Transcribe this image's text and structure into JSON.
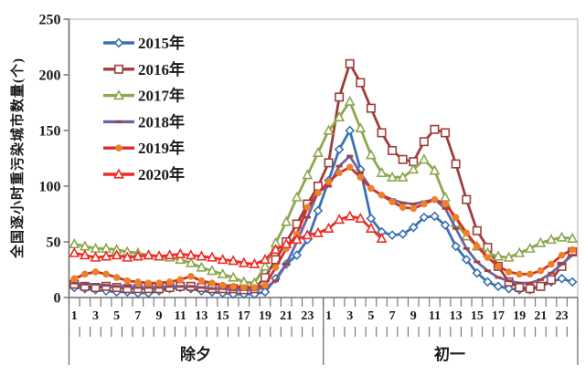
{
  "chart_data": {
    "type": "line",
    "title": "",
    "ylabel": "全国逐小时重污染城市数量(个)",
    "xlabel": "",
    "ylim": [
      0,
      250
    ],
    "y_ticks": [
      0,
      50,
      100,
      150,
      200,
      250
    ],
    "grid": false,
    "legend_position": "top-left",
    "x_groups": [
      {
        "label": "除夕",
        "hours": 24
      },
      {
        "label": "初一",
        "hours": 24
      }
    ],
    "x_tick_labels": [
      "1",
      "3",
      "5",
      "7",
      "9",
      "11",
      "13",
      "15",
      "17",
      "19",
      "21",
      "23"
    ],
    "axis_colors": {
      "axis": "#6e6e6e",
      "plot_border": "#bcbcbc",
      "text": "#1a1a1a"
    },
    "series": [
      {
        "name": "2015年",
        "color": "#3A72B0",
        "marker": "diamond",
        "values": [
          9,
          8,
          7,
          6,
          5,
          5,
          4,
          4,
          6,
          8,
          9,
          8,
          6,
          5,
          4,
          3,
          3,
          3,
          5,
          17,
          30,
          38,
          52,
          78,
          105,
          133,
          150,
          115,
          71,
          59,
          56,
          57,
          63,
          72,
          73,
          65,
          46,
          34,
          22,
          14,
          10,
          8,
          7,
          7,
          10,
          14,
          17,
          14
        ]
      },
      {
        "name": "2016年",
        "color": "#9E3D38",
        "marker": "square",
        "values": [
          12,
          10,
          9,
          10,
          9,
          8,
          8,
          8,
          8,
          9,
          10,
          10,
          9,
          8,
          8,
          8,
          7,
          8,
          18,
          34,
          50,
          66,
          84,
          100,
          121,
          180,
          210,
          193,
          170,
          148,
          132,
          124,
          122,
          140,
          151,
          148,
          120,
          88,
          60,
          45,
          28,
          14,
          9,
          8,
          10,
          16,
          28,
          41
        ]
      },
      {
        "name": "2017年",
        "color": "#8DA74F",
        "marker": "triangle",
        "values": [
          48,
          46,
          44,
          44,
          43,
          41,
          40,
          38,
          37,
          36,
          34,
          31,
          27,
          24,
          21,
          18,
          14,
          13,
          28,
          49,
          68,
          90,
          110,
          130,
          150,
          162,
          176,
          152,
          128,
          112,
          108,
          108,
          115,
          124,
          114,
          90,
          67,
          55,
          46,
          40,
          37,
          36,
          40,
          44,
          49,
          52,
          54,
          53
        ]
      },
      {
        "name": "2018年",
        "color": "#6B63A5",
        "marker": "dash",
        "marker_color": "#A2403E",
        "values": [
          13,
          12,
          12,
          11,
          10,
          10,
          9,
          9,
          9,
          10,
          10,
          10,
          9,
          8,
          8,
          7,
          7,
          7,
          9,
          15,
          30,
          50,
          72,
          95,
          100,
          118,
          127,
          112,
          98,
          92,
          88,
          85,
          84,
          86,
          88,
          80,
          62,
          44,
          32,
          24,
          18,
          15,
          13,
          13,
          16,
          22,
          30,
          38
        ]
      },
      {
        "name": "2019年",
        "color": "#D62E26",
        "marker": "circle",
        "marker_color": "#E8832C",
        "values": [
          17,
          21,
          23,
          21,
          18,
          15,
          14,
          13,
          13,
          14,
          16,
          19,
          15,
          13,
          11,
          10,
          9,
          9,
          11,
          27,
          44,
          57,
          81,
          94,
          104,
          112,
          117,
          108,
          98,
          92,
          86,
          81,
          80,
          84,
          88,
          84,
          72,
          58,
          46,
          36,
          28,
          23,
          21,
          21,
          24,
          30,
          38,
          43
        ]
      },
      {
        "name": "2020年",
        "color": "#EE2B24",
        "marker": "triangle",
        "values": [
          40,
          38,
          36,
          37,
          38,
          36,
          37,
          38,
          37,
          38,
          39,
          38,
          37,
          36,
          34,
          33,
          31,
          30,
          34,
          43,
          48,
          52,
          56,
          58,
          62,
          70,
          73,
          71,
          62,
          53,
          null,
          null,
          null,
          null,
          null,
          null,
          null,
          null,
          null,
          null,
          null,
          null,
          null,
          null,
          null,
          null,
          null,
          null
        ]
      }
    ]
  }
}
